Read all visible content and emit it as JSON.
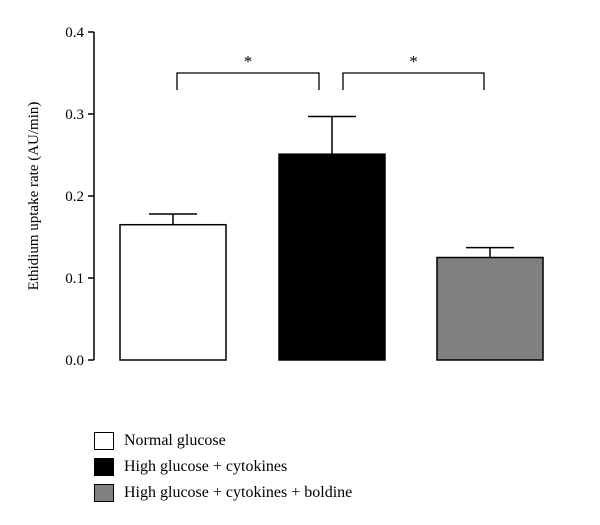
{
  "chart_data": {
    "type": "bar",
    "categories": [
      "Normal glucose",
      "High glucose + cytokines",
      "High glucose + cytokines + boldine"
    ],
    "values": [
      0.165,
      0.251,
      0.125
    ],
    "errors": [
      0.013,
      0.046,
      0.012
    ],
    "colors": [
      "#ffffff",
      "#000000",
      "#808080"
    ],
    "ylabel": "Ethidium uptake rate (AU/min)",
    "ylim": [
      0,
      0.4
    ],
    "yticks": [
      0.0,
      0.1,
      0.2,
      0.3,
      0.4
    ],
    "ytick_labels": [
      "0.0",
      "0.1",
      "0.2",
      "0.3",
      "0.4"
    ],
    "grid": false,
    "legend_position": "bottom-left",
    "significance": [
      {
        "from": 0,
        "to": 1,
        "label": "*",
        "level": 0.35
      },
      {
        "from": 1,
        "to": 2,
        "label": "*",
        "level": 0.35
      }
    ]
  }
}
